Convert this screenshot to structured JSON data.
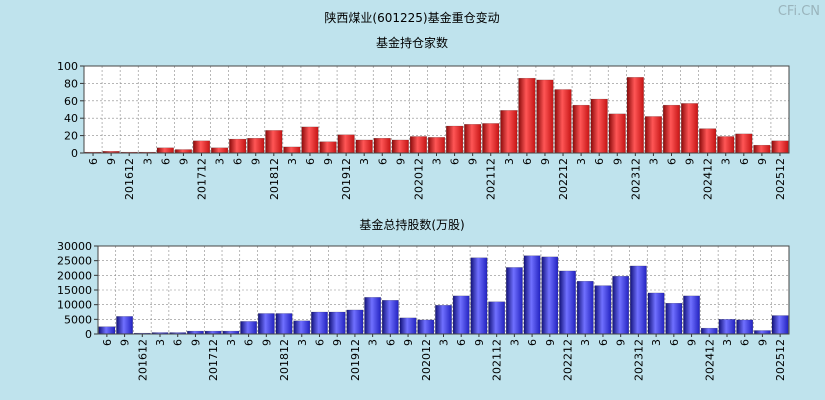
{
  "page": {
    "title": "陕西煤业(601225)基金重仓变动",
    "watermark": "CFi.CN",
    "background": "#bfe3ed"
  },
  "chart_data": [
    {
      "type": "bar",
      "title": "基金持仓家数",
      "categories": [
        "6",
        "9",
        "201612",
        "3",
        "6",
        "9",
        "201712",
        "3",
        "6",
        "9",
        "201812",
        "3",
        "6",
        "9",
        "201912",
        "3",
        "6",
        "9",
        "202012",
        "3",
        "6",
        "9",
        "202112",
        "3",
        "6",
        "9",
        "202212",
        "3",
        "6",
        "9",
        "202312",
        "3",
        "6",
        "9",
        "202412",
        "3",
        "6",
        "9",
        "202512"
      ],
      "values": [
        1,
        2,
        1,
        1,
        6,
        4,
        14,
        6,
        16,
        17,
        26,
        7,
        30,
        13,
        21,
        15,
        17,
        15,
        19,
        18,
        31,
        33,
        34,
        49,
        86,
        84,
        73,
        55,
        62,
        45,
        87,
        42,
        55,
        57,
        28,
        19,
        22,
        9,
        14
      ],
      "ylim": [
        0,
        100
      ],
      "yticks": [
        0,
        20,
        40,
        60,
        80,
        100
      ],
      "grid": true,
      "color": "#e52222"
    },
    {
      "type": "bar",
      "title": "基金总持股数(万股)",
      "categories": [
        "6",
        "9",
        "201612",
        "3",
        "6",
        "9",
        "201712",
        "3",
        "6",
        "9",
        "201812",
        "3",
        "6",
        "9",
        "201912",
        "3",
        "6",
        "9",
        "202012",
        "3",
        "6",
        "9",
        "202112",
        "3",
        "6",
        "9",
        "202212",
        "3",
        "6",
        "9",
        "202312",
        "3",
        "6",
        "9",
        "202412",
        "3",
        "6",
        "9",
        "202512"
      ],
      "values": [
        2500,
        6000,
        300,
        500,
        500,
        1000,
        1000,
        1000,
        4300,
        7000,
        7000,
        4500,
        7500,
        7500,
        8200,
        12500,
        11500,
        5500,
        4800,
        9800,
        13000,
        26000,
        11000,
        22700,
        26700,
        26300,
        21500,
        18000,
        16500,
        19700,
        23200,
        14000,
        10500,
        13000,
        2000,
        5000,
        4800,
        1200,
        6300
      ],
      "ylim": [
        0,
        30000
      ],
      "yticks": [
        0,
        5000,
        10000,
        15000,
        20000,
        25000,
        30000
      ],
      "grid": true,
      "color": "#2d2dd2"
    }
  ]
}
